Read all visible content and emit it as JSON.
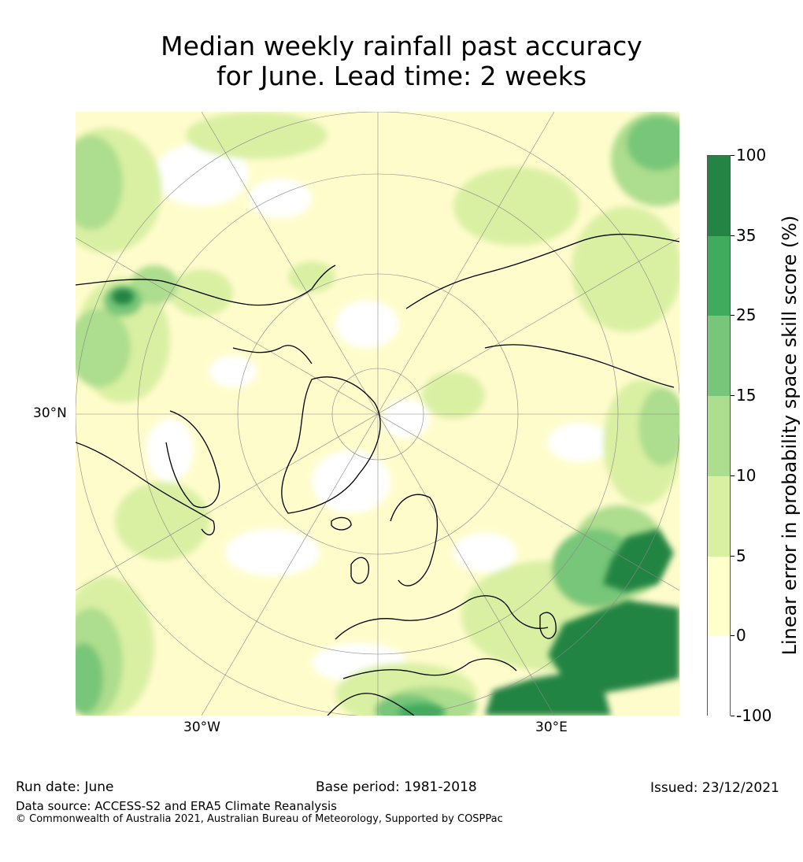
{
  "title": {
    "line1": "Median weekly rainfall past accuracy",
    "line2": "for June. Lead time: 2 weeks"
  },
  "map": {
    "labels": {
      "lat_30n": "30°N",
      "lon_30w": "30°W",
      "lon_30e": "30°E"
    },
    "colors": {
      "ocean_base": "#fffccc",
      "land_outline": "#000000"
    }
  },
  "colorbar": {
    "title": "Linear error in probability space skill score (%)",
    "ticks": [
      "100",
      "35",
      "25",
      "15",
      "10",
      "5",
      "0",
      "-100"
    ],
    "colors": [
      "#238443",
      "#41ab5d",
      "#78c679",
      "#addd8e",
      "#d9f0a3",
      "#ffffcc",
      "#ffffff"
    ]
  },
  "footer": {
    "run_date": "Run date: June",
    "base_period": "Base period: 1981-2018",
    "issued": "Issued: 23/12/2021",
    "data_source": "Data source: ACCESS-S2 and ERA5 Climate Reanalysis",
    "copyright": "© Commonwealth of Australia 2021, Australian Bureau of Meteorology, Supported by COSPPac"
  }
}
